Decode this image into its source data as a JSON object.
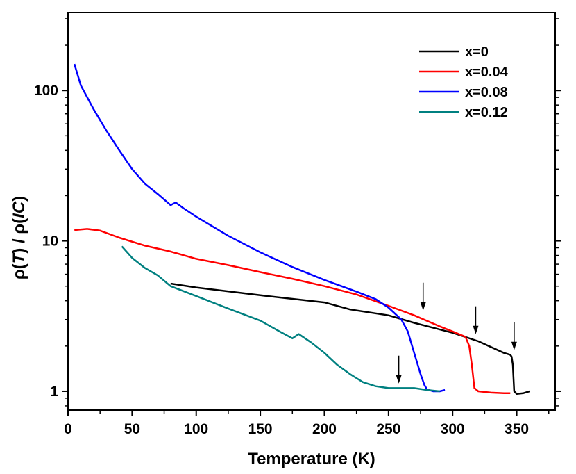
{
  "chart_data": {
    "type": "line",
    "xlabel": "Temperature (K)",
    "ylabel": {
      "prefix": "ρ(",
      "t": "T",
      "middle": ") / ρ(",
      "ic": "IC",
      "suffix": ")"
    },
    "xlim": [
      0,
      380
    ],
    "ylim": [
      0.75,
      330
    ],
    "yscale": "log",
    "x_ticks": [
      0,
      50,
      100,
      150,
      200,
      250,
      300,
      350
    ],
    "x_tick_labels": [
      "0",
      "50",
      "100",
      "150",
      "200",
      "250",
      "300",
      "350"
    ],
    "y_ticks": [
      1,
      10,
      100
    ],
    "y_tick_labels": [
      "1",
      "10",
      "100"
    ],
    "legend_position": "top-right",
    "series": [
      {
        "name": "x=0",
        "color": "#000000",
        "x": [
          80,
          100,
          150,
          200,
          220,
          250,
          270,
          300,
          320,
          340,
          345,
          346,
          347,
          348,
          350,
          355,
          360
        ],
        "y": [
          5.2,
          4.9,
          4.35,
          3.9,
          3.5,
          3.2,
          2.85,
          2.45,
          2.15,
          1.8,
          1.75,
          1.7,
          1.5,
          1.0,
          0.96,
          0.97,
          1.0
        ]
      },
      {
        "name": "x=0.04",
        "color": "#ff0000",
        "x": [
          5,
          15,
          25,
          40,
          60,
          80,
          100,
          125,
          150,
          175,
          200,
          225,
          250,
          270,
          290,
          300,
          310,
          313,
          315,
          317,
          320,
          330,
          340,
          345
        ],
        "y": [
          11.8,
          12,
          11.7,
          10.5,
          9.3,
          8.5,
          7.6,
          6.9,
          6.2,
          5.6,
          5.0,
          4.4,
          3.7,
          3.2,
          2.7,
          2.5,
          2.3,
          2.0,
          1.5,
          1.05,
          1.0,
          0.98,
          0.97,
          0.97
        ]
      },
      {
        "name": "x=0.08",
        "color": "#0000ff",
        "x": [
          5,
          10,
          20,
          30,
          40,
          50,
          60,
          70,
          80,
          84,
          90,
          100,
          125,
          150,
          175,
          200,
          225,
          240,
          250,
          260,
          265,
          270,
          275,
          278,
          280,
          285,
          290,
          294
        ],
        "y": [
          150,
          108,
          75,
          54,
          40,
          30,
          24,
          20.5,
          17.3,
          18,
          16.5,
          14.5,
          10.8,
          8.4,
          6.7,
          5.5,
          4.6,
          4.1,
          3.6,
          3.0,
          2.5,
          1.8,
          1.3,
          1.1,
          1.03,
          1.0,
          1.0,
          1.02
        ]
      },
      {
        "name": "x=0.12",
        "color": "#008080",
        "x": [
          42,
          50,
          60,
          70,
          80,
          100,
          125,
          150,
          165,
          175,
          180,
          190,
          200,
          210,
          220,
          230,
          240,
          250,
          260,
          270,
          280,
          290
        ],
        "y": [
          9.2,
          7.7,
          6.6,
          5.9,
          5.0,
          4.3,
          3.55,
          2.95,
          2.5,
          2.25,
          2.4,
          2.1,
          1.8,
          1.5,
          1.3,
          1.15,
          1.08,
          1.05,
          1.05,
          1.05,
          1.02,
          1.0
        ]
      }
    ],
    "annotations": [
      {
        "type": "arrow",
        "x": 277,
        "y": 3.3
      },
      {
        "type": "arrow",
        "x": 318,
        "y": 2.3
      },
      {
        "type": "arrow",
        "x": 348,
        "y": 1.8
      },
      {
        "type": "arrow",
        "x": 258,
        "y": 1.08
      }
    ]
  }
}
